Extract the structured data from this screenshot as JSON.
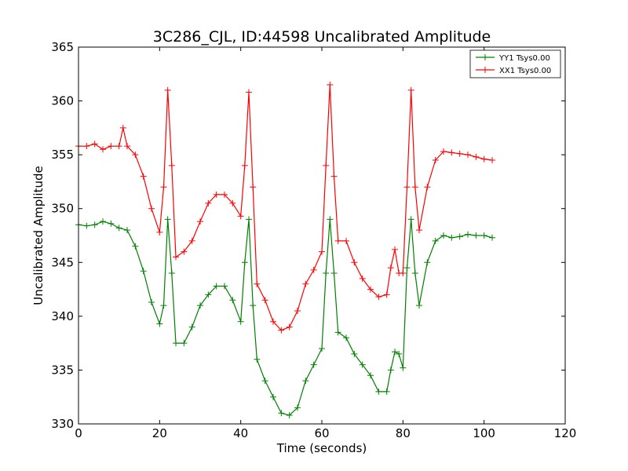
{
  "chart_data": {
    "type": "line",
    "title": "3C286_CJL, ID:44598 Uncalibrated Amplitude",
    "xlabel": "Time (seconds)",
    "ylabel": "Uncalibrated Amplitude",
    "xlim": [
      0,
      120
    ],
    "ylim": [
      330,
      365
    ],
    "xticks": [
      0,
      20,
      40,
      60,
      80,
      100,
      120
    ],
    "yticks": [
      330,
      335,
      340,
      345,
      350,
      355,
      360,
      365
    ],
    "grid": false,
    "legend_position": "top-right",
    "marker": "plus",
    "series": [
      {
        "name": "YY1 Tsys0.00",
        "color": "#008000",
        "x": [
          0,
          2,
          4,
          6,
          8,
          10,
          12,
          14,
          16,
          18,
          20,
          21,
          22,
          23,
          24,
          26,
          28,
          30,
          32,
          34,
          36,
          38,
          40,
          41,
          42,
          43,
          44,
          46,
          48,
          50,
          52,
          54,
          56,
          58,
          60,
          61,
          62,
          63,
          64,
          66,
          68,
          70,
          72,
          74,
          76,
          77,
          78,
          79,
          80,
          81,
          82,
          83,
          84,
          86,
          88,
          90,
          92,
          94,
          96,
          98,
          100,
          102
        ],
        "y": [
          348.5,
          348.4,
          348.5,
          348.8,
          348.6,
          348.2,
          348.0,
          346.5,
          344.2,
          341.3,
          339.3,
          341.0,
          349.0,
          344.0,
          337.5,
          337.5,
          339.0,
          341.0,
          342.0,
          342.8,
          342.8,
          341.5,
          339.5,
          345.0,
          349.0,
          341.0,
          336.0,
          334.0,
          332.5,
          331.0,
          330.8,
          331.5,
          334.0,
          335.5,
          337.0,
          344.0,
          349.0,
          344.0,
          338.5,
          338.0,
          336.5,
          335.5,
          334.5,
          333.0,
          333.0,
          335.0,
          336.7,
          336.5,
          335.2,
          344.5,
          349.0,
          344.0,
          341.0,
          345.0,
          347.0,
          347.5,
          347.3,
          347.4,
          347.6,
          347.5,
          347.5,
          347.3
        ]
      },
      {
        "name": "XX1 Tsys0.00",
        "color": "#ff0000",
        "x": [
          0,
          2,
          4,
          6,
          8,
          10,
          11,
          12,
          14,
          16,
          18,
          20,
          21,
          22,
          23,
          24,
          26,
          28,
          30,
          32,
          34,
          36,
          38,
          40,
          41,
          42,
          43,
          44,
          46,
          48,
          50,
          52,
          54,
          56,
          58,
          60,
          61,
          62,
          63,
          64,
          66,
          68,
          70,
          72,
          74,
          76,
          77,
          78,
          79,
          80,
          81,
          82,
          83,
          84,
          86,
          88,
          90,
          92,
          94,
          96,
          98,
          100,
          102
        ],
        "y": [
          355.8,
          355.8,
          356.0,
          355.5,
          355.8,
          355.8,
          357.5,
          355.8,
          355.0,
          353.0,
          350.0,
          347.8,
          352.0,
          361.0,
          354.0,
          345.5,
          346.0,
          347.0,
          348.8,
          350.5,
          351.3,
          351.3,
          350.5,
          349.3,
          354.0,
          360.8,
          352.0,
          343.0,
          341.5,
          339.5,
          338.7,
          339.0,
          340.5,
          343.0,
          344.3,
          346.0,
          354.0,
          361.5,
          353.0,
          347.0,
          347.0,
          345.0,
          343.5,
          342.5,
          341.8,
          342.0,
          344.5,
          346.2,
          344.0,
          344.0,
          352.0,
          361.0,
          352.0,
          348.0,
          352.0,
          354.5,
          355.3,
          355.2,
          355.1,
          355.0,
          354.8,
          354.6,
          354.5
        ]
      }
    ]
  }
}
